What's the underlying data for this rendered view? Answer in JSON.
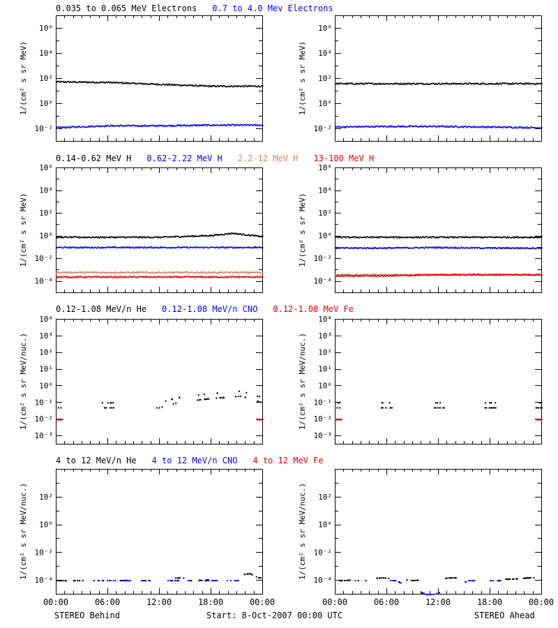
{
  "colors": {
    "black": "#000000",
    "blue": "#0000ff",
    "salmon": "#d2826e",
    "red": "#e00000",
    "pink": "#ff9f9f"
  },
  "x_axis": {
    "tick_labels": [
      "00:00",
      "06:00",
      "12:00",
      "18:00",
      "00:00"
    ]
  },
  "footer": {
    "left": "STEREO Behind",
    "center": "Start:  8-Oct-2007 00:00 UTC",
    "right": "STEREO Ahead"
  },
  "chart_data": [
    {
      "type": "scatter",
      "row": 1,
      "legend": [
        {
          "text": "0.035 to 0.065 MeV Electrons",
          "color": "#000000"
        },
        {
          "text": "0.7 to 4.0 Mev Electrons",
          "color": "#0000ff"
        }
      ],
      "ylabel": "1/(cm² s sr MeV)",
      "y_log_range": [
        -3,
        7
      ],
      "y_ticks": [
        -2,
        0,
        2,
        4,
        6
      ],
      "y_tick_labels": [
        "10⁻²",
        "10⁰",
        "10²",
        "10⁴",
        "10⁶"
      ],
      "x_range_hours": [
        0,
        24
      ],
      "panels": [
        {
          "spacecraft": "STEREO Behind",
          "series": [
            {
              "color": "#000000",
              "hours": [
                0,
                6,
                12,
                18,
                24
              ],
              "log10_flux": [
                1.75,
                1.7,
                1.55,
                1.4,
                1.4
              ]
            },
            {
              "color": "#0000ff",
              "hours": [
                0,
                6,
                12,
                18,
                24
              ],
              "log10_flux": [
                -1.9,
                -1.75,
                -1.75,
                -1.7,
                -1.7
              ]
            }
          ]
        },
        {
          "spacecraft": "STEREO Ahead",
          "series": [
            {
              "color": "#000000",
              "hours": [
                0,
                6,
                12,
                18,
                24
              ],
              "log10_flux": [
                1.6,
                1.6,
                1.6,
                1.6,
                1.6
              ]
            },
            {
              "color": "#0000ff",
              "hours": [
                0,
                6,
                12,
                18,
                24
              ],
              "log10_flux": [
                -1.85,
                -1.8,
                -1.8,
                -1.85,
                -1.9
              ]
            }
          ]
        }
      ]
    },
    {
      "type": "scatter",
      "row": 2,
      "legend": [
        {
          "text": "0.14-0.62 MeV H",
          "color": "#000000"
        },
        {
          "text": "0.62-2.22 MeV H",
          "color": "#0000ff"
        },
        {
          "text": "2.2-12 MeV H",
          "color": "#d2826e"
        },
        {
          "text": "13-100 MeV H",
          "color": "#e00000"
        }
      ],
      "ylabel": "1/(cm² s sr MeV)",
      "y_log_range": [
        -5,
        6
      ],
      "y_ticks": [
        -4,
        -2,
        0,
        2,
        4,
        6
      ],
      "y_tick_labels": [
        "10⁻⁴",
        "10⁻²",
        "10⁰",
        "10²",
        "10⁴",
        "10⁶"
      ],
      "x_range_hours": [
        0,
        24
      ],
      "panels": [
        {
          "spacecraft": "STEREO Behind",
          "series": [
            {
              "color": "#000000",
              "hours": [
                0,
                6,
                12,
                18,
                20.5,
                24
              ],
              "log10_flux": [
                -0.1,
                -0.1,
                -0.1,
                0.05,
                0.25,
                -0.05
              ]
            },
            {
              "color": "#0000ff",
              "hours": [
                0,
                6,
                12,
                18,
                24
              ],
              "log10_flux": [
                -1.0,
                -1.0,
                -1.0,
                -1.0,
                -1.0
              ]
            },
            {
              "color": "#d2826e",
              "hours": [
                0,
                6,
                12,
                18,
                24
              ],
              "log10_flux": [
                -3.2,
                -3.2,
                -3.2,
                -3.2,
                -3.2
              ]
            },
            {
              "color": "#e00000",
              "hours": [
                0,
                6,
                12,
                18,
                24
              ],
              "log10_flux": [
                -3.6,
                -3.6,
                -3.6,
                -3.6,
                -3.6
              ]
            }
          ]
        },
        {
          "spacecraft": "STEREO Ahead",
          "series": [
            {
              "color": "#000000",
              "hours": [
                0,
                6,
                12,
                18,
                24
              ],
              "log10_flux": [
                -0.1,
                -0.1,
                -0.1,
                -0.1,
                -0.1
              ]
            },
            {
              "color": "#0000ff",
              "hours": [
                0,
                6,
                12,
                18,
                24
              ],
              "log10_flux": [
                -1.05,
                -1.05,
                -1.0,
                -1.05,
                -1.05
              ]
            },
            {
              "color": "#d2826e",
              "hours": [
                0,
                6,
                12,
                18,
                24
              ],
              "log10_flux": [
                -3.4,
                -3.4,
                -3.4,
                -3.4,
                -3.4
              ]
            },
            {
              "color": "#e00000",
              "hours": [
                0,
                6,
                12,
                18,
                24
              ],
              "log10_flux": [
                -3.5,
                -3.5,
                -3.4,
                -3.4,
                -3.4
              ]
            }
          ]
        }
      ]
    },
    {
      "type": "scatter",
      "row": 3,
      "legend": [
        {
          "text": "0.12-1.08 MeV/n He",
          "color": "#000000"
        },
        {
          "text": "0.12-1.08 MeV/n CNO",
          "color": "#0000ff"
        },
        {
          "text": "0.12-1.08 MeV Fe",
          "color": "#e00000"
        }
      ],
      "ylabel": "1/(cm² s sr MeV/nuc.)",
      "y_log_range": [
        -3.5,
        4
      ],
      "y_ticks": [
        -3,
        -2,
        -1,
        0,
        1,
        2,
        3,
        4
      ],
      "y_tick_labels": [
        "10⁻³",
        "10⁻²",
        "10⁻¹",
        "10⁰",
        "10¹",
        "10²",
        "10³",
        "10⁴"
      ],
      "x_range_hours": [
        0,
        24
      ],
      "panels": [
        {
          "spacecraft": "STEREO Behind",
          "series": [
            {
              "color": "#000000",
              "hours": [
                0,
                6,
                12,
                14,
                17,
                19,
                21.5,
                24
              ],
              "log10_flux": [
                -1.3,
                -1.3,
                -1.3,
                -1.0,
                -0.8,
                -0.7,
                -0.6,
                -1.0
              ]
            },
            {
              "color": "#0000ff",
              "hours": [
                0,
                24
              ],
              "log10_flux": [
                -2.0,
                -2.0
              ]
            },
            {
              "color": "#e00000",
              "hours": [
                0,
                24
              ],
              "log10_flux": [
                -2.0,
                -2.0
              ]
            }
          ]
        },
        {
          "spacecraft": "STEREO Ahead",
          "series": [
            {
              "color": "#000000",
              "hours": [
                0,
                6,
                12,
                18,
                24
              ],
              "log10_flux": [
                -1.3,
                -1.3,
                -1.3,
                -1.3,
                -1.3
              ]
            },
            {
              "color": "#0000ff",
              "hours": [
                0,
                24
              ],
              "log10_flux": [
                -2.0,
                -2.0
              ]
            },
            {
              "color": "#e00000",
              "hours": [
                0,
                24
              ],
              "log10_flux": [
                -2.0,
                -2.0
              ]
            }
          ]
        }
      ]
    },
    {
      "type": "scatter",
      "row": 4,
      "legend": [
        {
          "text": "4 to 12 MeV/n He",
          "color": "#000000"
        },
        {
          "text": "4 to 12 MeV/n CNO",
          "color": "#0000ff"
        },
        {
          "text": "4 to 12 MeV Fe",
          "color": "#e00000"
        }
      ],
      "ylabel": "1/(cm² s sr MeV/nuc.)",
      "y_log_range": [
        -5,
        4
      ],
      "y_ticks": [
        -4,
        -2,
        0,
        2
      ],
      "y_tick_labels": [
        "10⁻⁴",
        "10⁻²",
        "10⁰",
        "10²"
      ],
      "x_range_hours": [
        0,
        24
      ],
      "panels": [
        {
          "spacecraft": "STEREO Behind",
          "series": [
            {
              "color": "#000000",
              "hours": [
                0.5,
                2.5,
                5,
                7.5,
                14.5,
                17,
                22.5,
                23.5
              ],
              "log10_flux": [
                -4,
                -4,
                -4,
                -4,
                -3.8,
                -4,
                -3.5,
                -3.8
              ]
            },
            {
              "color": "#0000ff",
              "hours": [
                6,
                8,
                10.5,
                13.5,
                16,
                18,
                20.5
              ],
              "log10_flux": [
                -4,
                -4,
                -4,
                -4,
                -4,
                -4,
                -4
              ]
            }
          ]
        },
        {
          "spacecraft": "STEREO Ahead",
          "series": [
            {
              "color": "#000000",
              "hours": [
                1,
                5.5,
                9,
                13.5,
                20.5,
                22.5
              ],
              "log10_flux": [
                -4,
                -3.8,
                -4,
                -3.8,
                -3.9,
                -3.8
              ]
            },
            {
              "color": "#0000ff",
              "hours": [
                3,
                7,
                10.5,
                11.5,
                15.5,
                18.5
              ],
              "log10_flux": [
                -4,
                -4,
                -5,
                -5,
                -4,
                -4
              ]
            }
          ]
        }
      ]
    }
  ]
}
